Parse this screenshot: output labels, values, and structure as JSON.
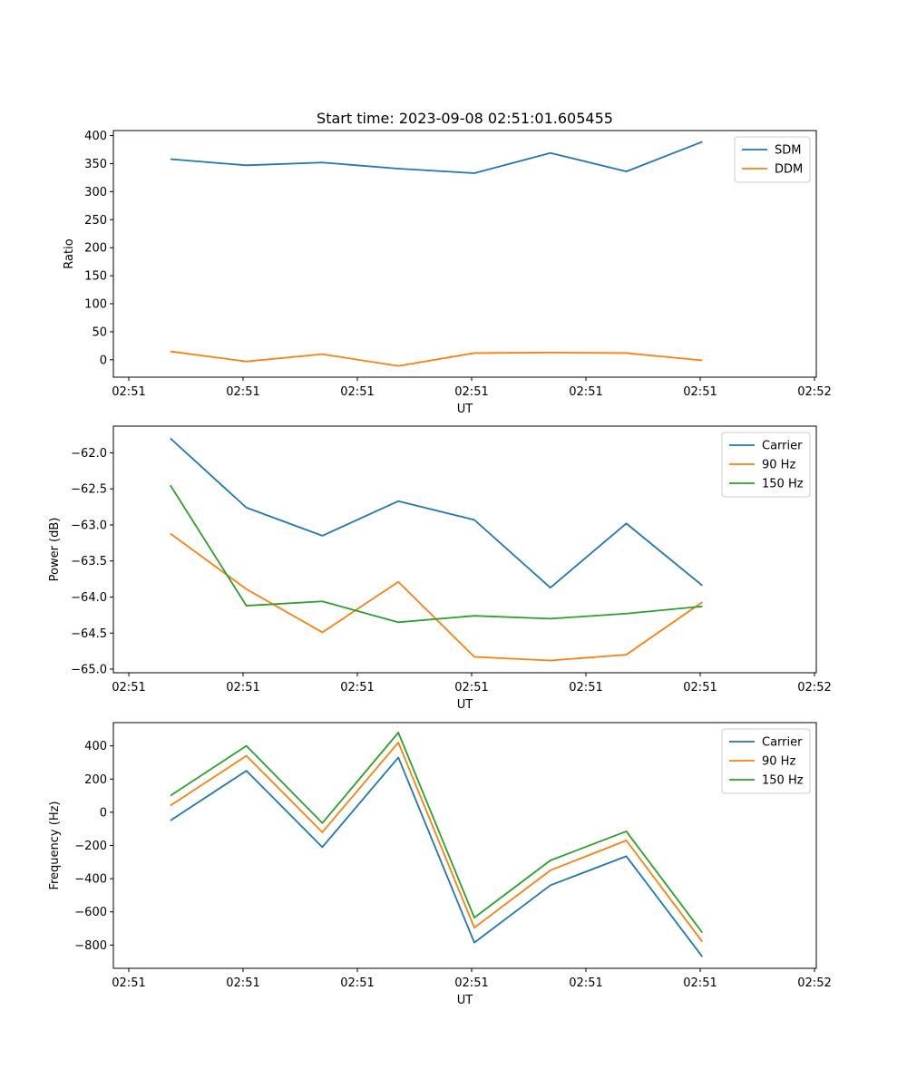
{
  "figure": {
    "title": "Start time: 2023-09-08 02:51:01.605455"
  },
  "chart_data": [
    {
      "type": "line",
      "title": "Start time: 2023-09-08 02:51:01.605455",
      "xlabel": "UT",
      "ylabel": "Ratio",
      "x_tick_labels": [
        "02:51",
        "02:51",
        "02:51",
        "02:51",
        "02:51",
        "02:51",
        "02:52"
      ],
      "xlim": [
        0,
        9.25
      ],
      "x": [
        0.75,
        1.75,
        2.75,
        3.75,
        4.75,
        5.75,
        6.75,
        7.75
      ],
      "ylim": [
        -31,
        409
      ],
      "yticks": [
        0,
        50,
        100,
        150,
        200,
        250,
        300,
        350,
        400
      ],
      "legend_position": "top-right",
      "series": [
        {
          "name": "SDM",
          "color": "#1f77b4",
          "values": [
            358,
            347,
            352,
            341,
            333,
            369,
            336,
            389
          ]
        },
        {
          "name": "DDM",
          "color": "#ff7f0e",
          "values": [
            15,
            -3,
            10,
            -11,
            12,
            13,
            12,
            -1
          ]
        }
      ]
    },
    {
      "type": "line",
      "title": "",
      "xlabel": "UT",
      "ylabel": "Power (dB)",
      "x_tick_labels": [
        "02:51",
        "02:51",
        "02:51",
        "02:51",
        "02:51",
        "02:51",
        "02:52"
      ],
      "xlim": [
        0,
        9.25
      ],
      "x": [
        0.75,
        1.75,
        2.75,
        3.75,
        4.75,
        5.75,
        6.75,
        7.75
      ],
      "ylim": [
        -65.05,
        -61.63
      ],
      "yticks": [
        -65.0,
        -64.5,
        -64.0,
        -63.5,
        -63.0,
        -62.5,
        -62.0
      ],
      "y_tick_labels": [
        "−65.0",
        "−64.5",
        "−64.0",
        "−63.5",
        "−63.0",
        "−62.5",
        "−62.0"
      ],
      "legend_position": "top-right",
      "series": [
        {
          "name": "Carrier",
          "color": "#1f77b4",
          "values": [
            -61.8,
            -62.76,
            -63.15,
            -62.67,
            -62.93,
            -63.87,
            -62.98,
            -63.84
          ]
        },
        {
          "name": "90 Hz",
          "color": "#ff7f0e",
          "values": [
            -63.12,
            -63.89,
            -64.49,
            -63.79,
            -64.83,
            -64.88,
            -64.8,
            -64.07
          ]
        },
        {
          "name": "150 Hz",
          "color": "#2ca02c",
          "values": [
            -62.45,
            -64.12,
            -64.06,
            -64.35,
            -64.26,
            -64.3,
            -64.23,
            -64.13
          ]
        }
      ]
    },
    {
      "type": "line",
      "title": "",
      "xlabel": "UT",
      "ylabel": "Frequency (Hz)",
      "x_tick_labels": [
        "02:51",
        "02:51",
        "02:51",
        "02:51",
        "02:51",
        "02:51",
        "02:52"
      ],
      "xlim": [
        0,
        9.25
      ],
      "x": [
        0.75,
        1.75,
        2.75,
        3.75,
        4.75,
        5.75,
        6.75,
        7.75
      ],
      "ylim": [
        -940,
        540
      ],
      "yticks": [
        -800,
        -600,
        -400,
        -200,
        0,
        200,
        400
      ],
      "y_tick_labels": [
        "−800",
        "−600",
        "−400",
        "−200",
        "0",
        "200",
        "400"
      ],
      "legend_position": "top-right",
      "series": [
        {
          "name": "Carrier",
          "color": "#1f77b4",
          "values": [
            -50,
            250,
            -210,
            330,
            -785,
            -440,
            -265,
            -870
          ]
        },
        {
          "name": "90 Hz",
          "color": "#ff7f0e",
          "values": [
            40,
            340,
            -120,
            420,
            -695,
            -350,
            -170,
            -780
          ]
        },
        {
          "name": "150 Hz",
          "color": "#2ca02c",
          "values": [
            100,
            400,
            -65,
            480,
            -635,
            -290,
            -115,
            -725
          ]
        }
      ]
    }
  ]
}
